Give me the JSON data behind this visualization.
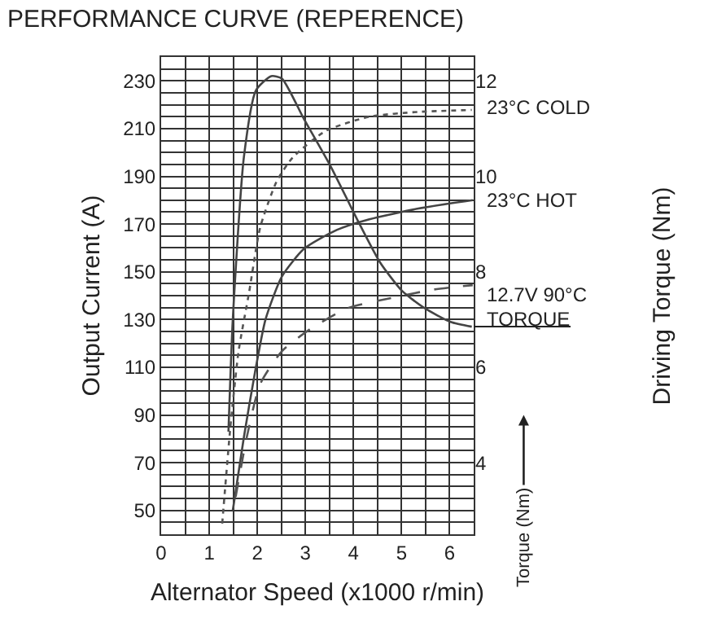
{
  "chart_data": {
    "type": "line",
    "title": "PERFORMANCE CURVE (REPERENCE)",
    "xlabel": "Alternator Speed (x1000 r/min)",
    "ylabel": "Output Current (A)",
    "xlim": [
      0,
      6.5
    ],
    "xticks": [
      0,
      1,
      2,
      3,
      4,
      5,
      6
    ],
    "ylim": [
      40,
      240
    ],
    "yticks": [
      50,
      70,
      90,
      110,
      130,
      150,
      170,
      190,
      210,
      230
    ],
    "y2lim": [
      2.5,
      12.5
    ],
    "y2ticks": [
      4,
      6,
      8,
      10,
      12
    ],
    "grid": true,
    "legend": false,
    "marker": "none",
    "series": [
      {
        "name": "23°C COLD",
        "color": "#555555",
        "line_style": "dotted",
        "x": [
          1.27,
          1.44,
          1.61,
          1.83,
          2.06,
          2.4,
          2.74,
          3.42,
          4.33,
          5.35,
          6.46
        ],
        "values": [
          44.5,
          85,
          116.7,
          141.5,
          168.6,
          187.8,
          198,
          209,
          215,
          217,
          217.8
        ]
      },
      {
        "name": "23°C HOT",
        "color": "#444444",
        "line_style": "solid",
        "x": [
          1.49,
          1.72,
          1.95,
          2.17,
          2.51,
          2.97,
          3.65,
          4.33,
          5.35,
          6.48
        ],
        "values": [
          50,
          80.6,
          107.7,
          130,
          148,
          159.6,
          167.5,
          172,
          176.5,
          180
        ]
      },
      {
        "name": "12.7V 90°C",
        "color": "#555555",
        "line_style": "dashed",
        "x": [
          1.55,
          1.78,
          2.06,
          2.51,
          3.08,
          3.87,
          4.78,
          5.68,
          6.48
        ],
        "values": [
          55.7,
          80.6,
          103,
          116.7,
          125.7,
          134.7,
          139,
          142.6,
          144.4
        ]
      },
      {
        "name": "TORQUE",
        "color": "#444444",
        "line_style": "solid",
        "axis": "y2",
        "x": [
          1.4,
          1.49,
          1.72,
          1.97,
          2.29,
          2.51,
          2.97,
          3.53,
          4.1,
          4.55,
          5.01,
          5.46,
          6.02,
          6.46
        ],
        "values": [
          4.65,
          7.0,
          10.4,
          11.8,
          12.1,
          12.05,
          11.2,
          10.2,
          9.05,
          8.2,
          7.6,
          7.25,
          6.95,
          6.85
        ]
      }
    ],
    "annotations": [
      "Torque (Nm)",
      "Driving Torque (Nm)"
    ]
  }
}
